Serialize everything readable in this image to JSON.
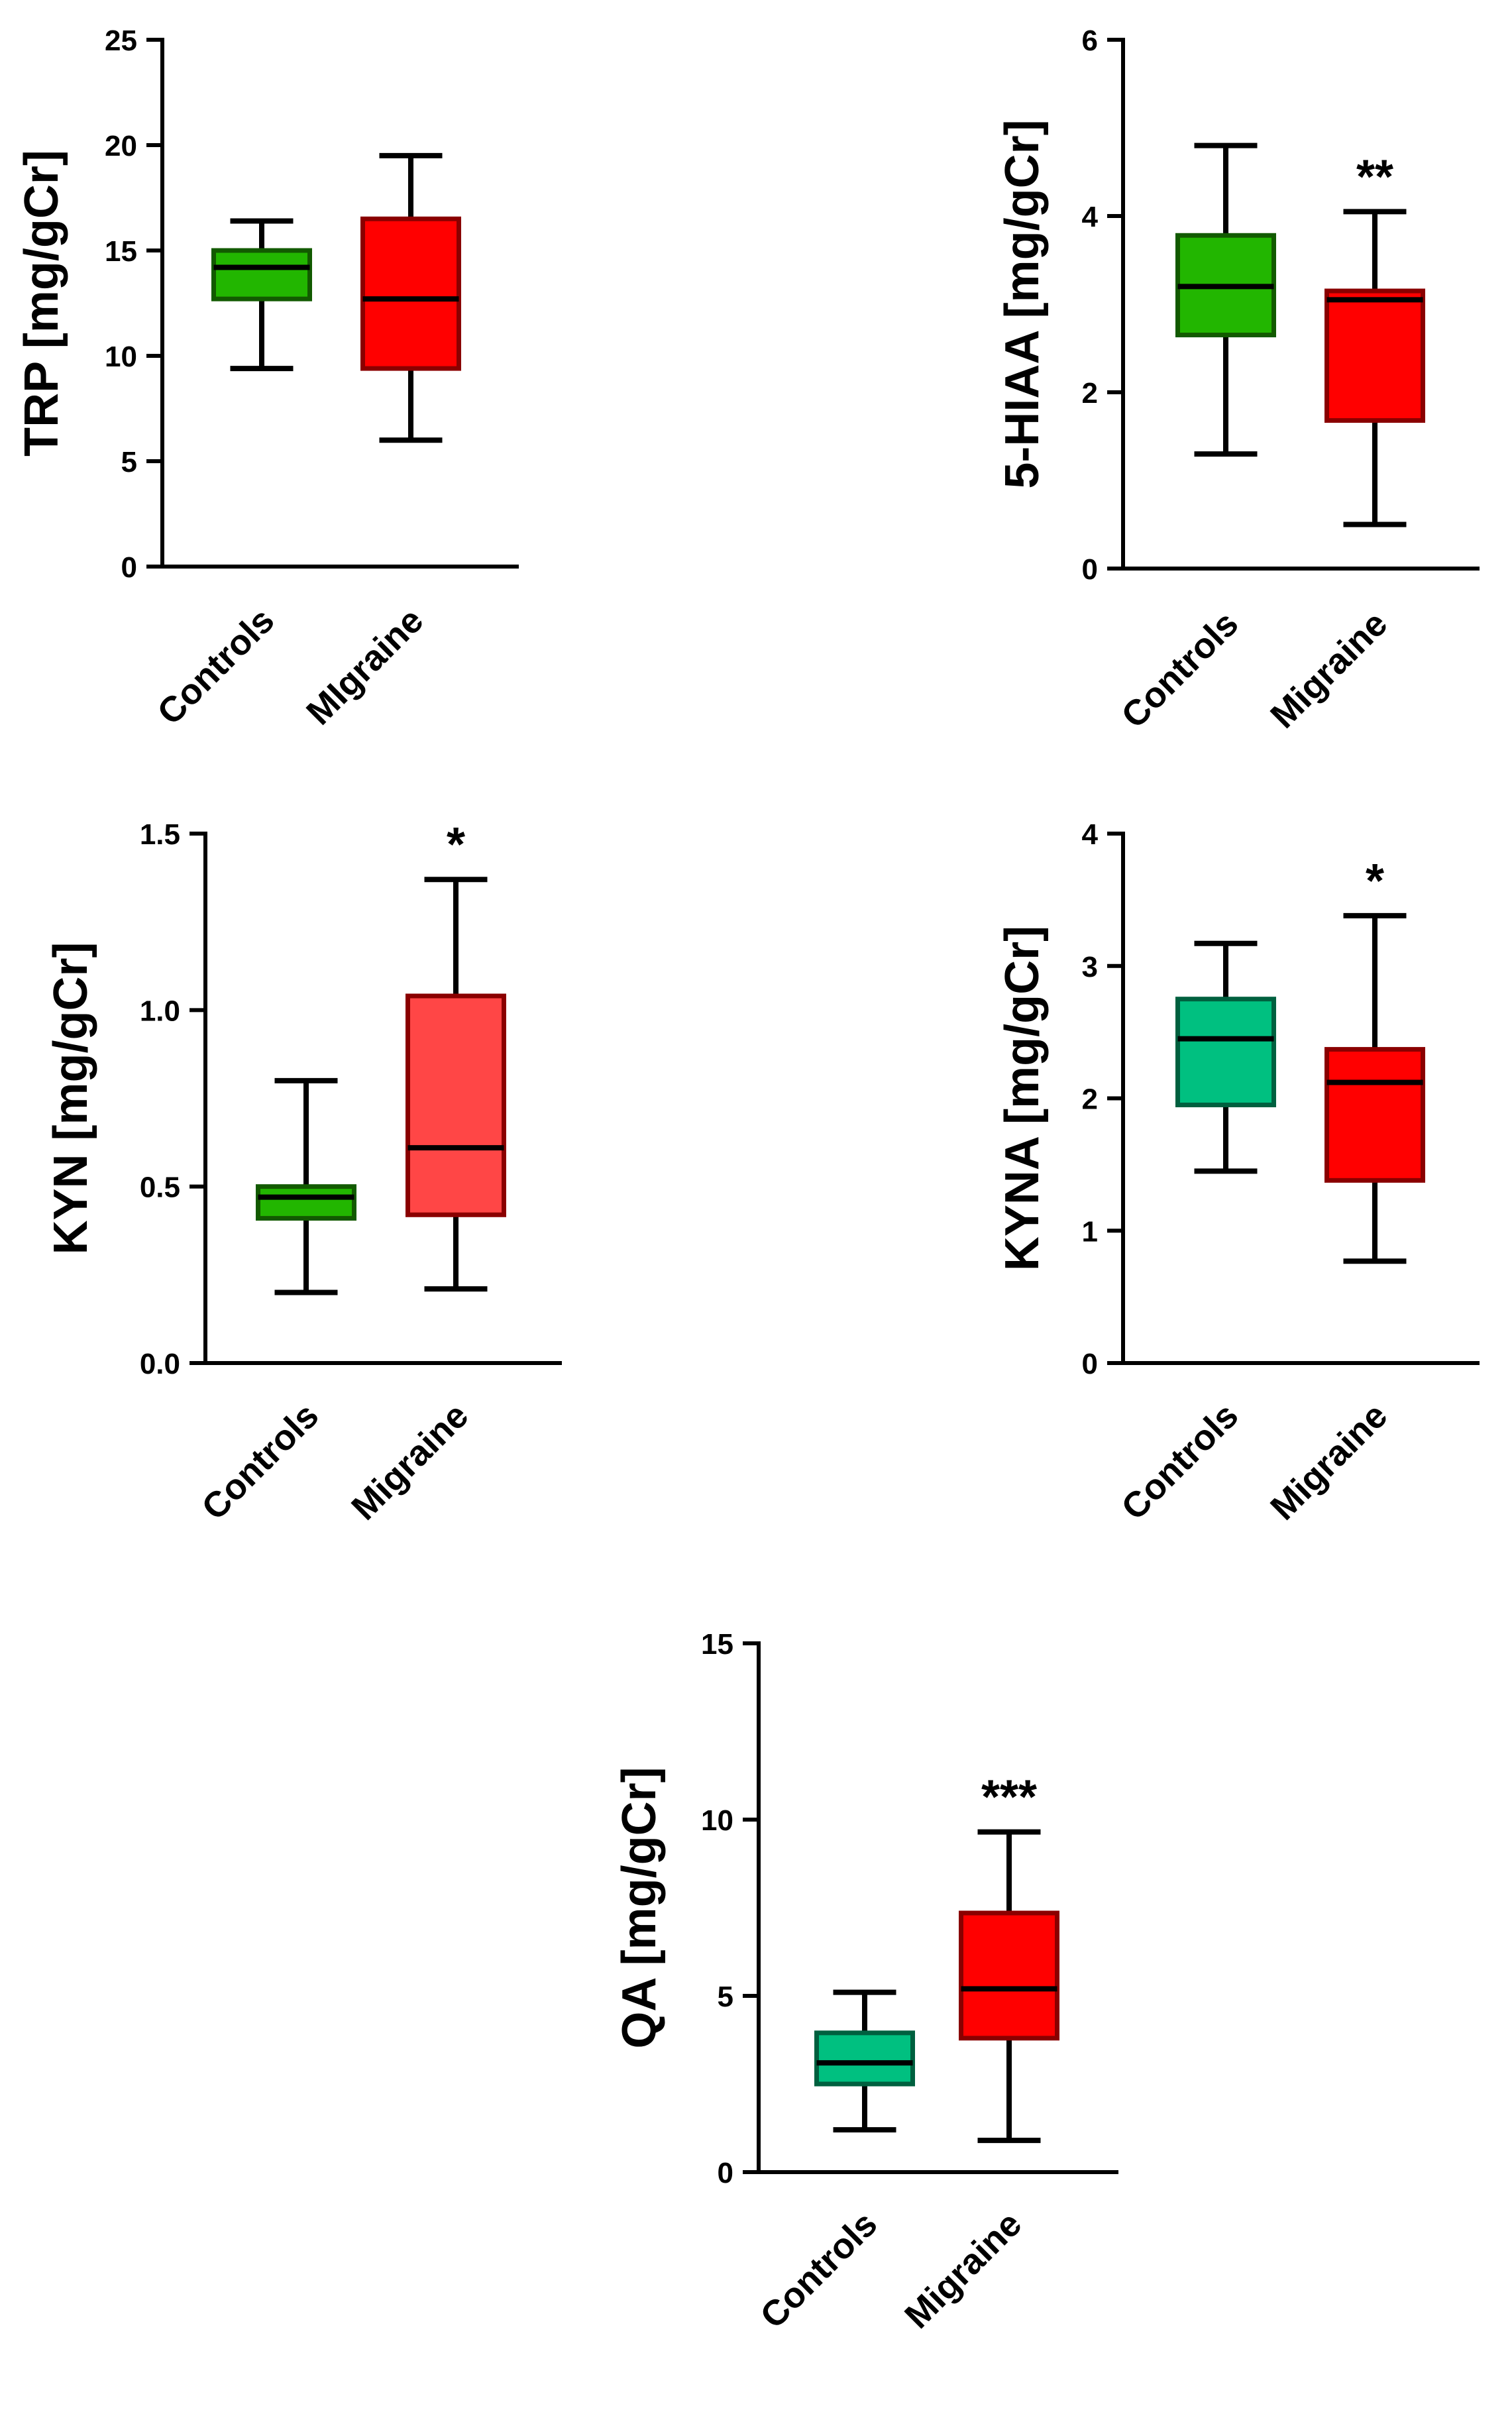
{
  "chart_data": [
    {
      "type": "box",
      "ylabel": "TRP [mg/gCr]",
      "ylim": [
        0,
        25
      ],
      "yticks": [
        0,
        5,
        10,
        15,
        20,
        25
      ],
      "tick_labels": [
        "0",
        "5",
        "10",
        "15",
        "20",
        "25"
      ],
      "categories": [
        "Controls",
        "MIgraine"
      ],
      "boxes": [
        {
          "name": "Controls",
          "min": 9.4,
          "q1": 12.7,
          "median": 14.2,
          "q3": 15.0,
          "max": 16.4,
          "color": "#22b600",
          "edge": "#125a00",
          "sig": ""
        },
        {
          "name": "MIgraine",
          "min": 6.0,
          "q1": 9.4,
          "median": 12.7,
          "q3": 16.5,
          "max": 19.5,
          "color": "#ff0000",
          "edge": "#8a0000",
          "sig": ""
        }
      ]
    },
    {
      "type": "box",
      "ylabel": "5-HIAA [mg/gCr]",
      "ylim": [
        0,
        6
      ],
      "yticks": [
        0,
        2,
        4,
        6
      ],
      "tick_labels": [
        "0",
        "2",
        "4",
        "6"
      ],
      "categories": [
        "Controls",
        "Migraine"
      ],
      "boxes": [
        {
          "name": "Controls",
          "min": 1.3,
          "q1": 2.65,
          "median": 3.2,
          "q3": 3.78,
          "max": 4.8,
          "color": "#22b600",
          "edge": "#125a00",
          "sig": ""
        },
        {
          "name": "Migraine",
          "min": 0.5,
          "q1": 1.68,
          "median": 3.05,
          "q3": 3.15,
          "max": 4.05,
          "color": "#ff0000",
          "edge": "#8a0000",
          "sig": "**"
        }
      ]
    },
    {
      "type": "box",
      "ylabel": "KYN [mg/gCr]",
      "ylim": [
        0,
        1.5
      ],
      "yticks": [
        0,
        0.5,
        1.0,
        1.5
      ],
      "tick_labels": [
        "0.0",
        "0.5",
        "1.0",
        "1.5"
      ],
      "categories": [
        "Controls",
        "Migraine"
      ],
      "boxes": [
        {
          "name": "Controls",
          "min": 0.2,
          "q1": 0.41,
          "median": 0.47,
          "q3": 0.5,
          "max": 0.8,
          "color": "#22b600",
          "edge": "#125a00",
          "sig": ""
        },
        {
          "name": "Migraine",
          "min": 0.21,
          "q1": 0.42,
          "median": 0.61,
          "q3": 1.04,
          "max": 1.37,
          "color": "#ff4646",
          "edge": "#8a0000",
          "sig": "*"
        }
      ]
    },
    {
      "type": "box",
      "ylabel": "KYNA [mg/gCr]",
      "ylim": [
        0,
        4
      ],
      "yticks": [
        0,
        1,
        2,
        3,
        4
      ],
      "tick_labels": [
        "0",
        "1",
        "2",
        "3",
        "4"
      ],
      "categories": [
        "Controls",
        "Migraine"
      ],
      "boxes": [
        {
          "name": "Controls",
          "min": 1.45,
          "q1": 1.95,
          "median": 2.45,
          "q3": 2.75,
          "max": 3.17,
          "color": "#00c080",
          "edge": "#00603f",
          "sig": ""
        },
        {
          "name": "Migraine",
          "min": 0.77,
          "q1": 1.38,
          "median": 2.12,
          "q3": 2.37,
          "max": 3.38,
          "color": "#ff0000",
          "edge": "#8a0000",
          "sig": "*"
        }
      ]
    },
    {
      "type": "box",
      "ylabel": "QA [mg/gCr]",
      "ylim": [
        0,
        15
      ],
      "yticks": [
        0,
        5,
        10,
        15
      ],
      "tick_labels": [
        "0",
        "5",
        "10",
        "15"
      ],
      "categories": [
        "Controls",
        "Migraine"
      ],
      "boxes": [
        {
          "name": "Controls",
          "min": 1.2,
          "q1": 2.5,
          "median": 3.1,
          "q3": 3.95,
          "max": 5.1,
          "color": "#00c080",
          "edge": "#00603f",
          "sig": ""
        },
        {
          "name": "Migraine",
          "min": 0.9,
          "q1": 3.8,
          "median": 5.2,
          "q3": 7.35,
          "max": 9.65,
          "color": "#ff0000",
          "edge": "#8a0000",
          "sig": "***"
        }
      ]
    }
  ]
}
